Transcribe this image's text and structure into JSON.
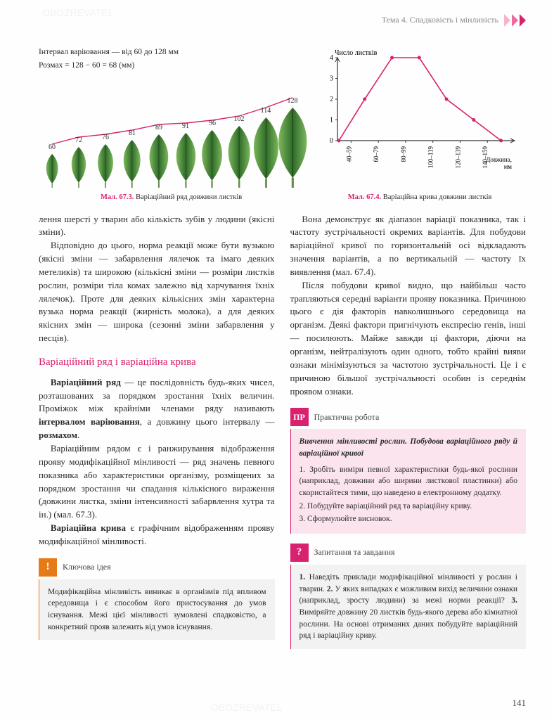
{
  "header": {
    "theme": "Тема 4. Спадковість і мінливість"
  },
  "fig_left": {
    "interval_line": "Інтервал варіювання — від 60 до 128 мм",
    "range_line": "Розмах = 128 − 60 = 68 (мм)",
    "leaves": {
      "values": [
        60,
        72,
        76,
        81,
        89,
        91,
        96,
        102,
        114,
        128
      ],
      "heights": [
        48,
        58,
        62,
        68,
        76,
        78,
        82,
        88,
        100,
        114
      ],
      "fill_light": "#7cb85a",
      "fill_dark": "#2f6a2a",
      "stem": "#6a8a4a",
      "trend_color": "#d8216f"
    },
    "caption_bold": "Мал. 67.3.",
    "caption": "Варіаційний ряд довжини листків"
  },
  "fig_right": {
    "y_label": "Число листків",
    "x_label": "Довжина, мм",
    "x_ticks": [
      "40–59",
      "60–79",
      "80–99",
      "100–119",
      "120–139",
      "140–159"
    ],
    "y_ticks": [
      0,
      1,
      2,
      3,
      4
    ],
    "points": [
      0,
      2,
      4,
      4,
      2,
      1,
      0
    ],
    "line_color": "#d8216f",
    "axis_color": "#333333",
    "caption_bold": "Мал. 67.4.",
    "caption": "Варіаційна крива довжини листків"
  },
  "body": {
    "p1": "лення шерсті у тварин або кількість зубів у людини (якісні зміни).",
    "p2": "Відповідно до цього, норма реакції може бути вузькою (якісні зміни — забарвлення лялечок та імаго деяких метеликів) та широкою (кількісні зміни — розміри листків рослин, розміри тіла комах залежно від харчування їхніх лялечок). Проте для деяких кількісних змін характерна вузька норма реакції (жирність молока), а для деяких якісних змін — широка (сезонні зміни забарвлення у песців).",
    "h3": "Варіаційний ряд і варіаційна крива",
    "p3a": "Варіаційний ряд",
    "p3b": " — це послідовність будь-яких чисел, розташованих за порядком зростання їхніх величин. Проміжок між крайніми членами ряду називають ",
    "p3c": "інтервалом варіювання",
    "p3d": ", а довжину цього інтервалу — ",
    "p3e": "розмахом",
    "p3f": ".",
    "p4": "Варіаційним рядом є і ранжирування відображення прояву модифікаційної мінливості — ряд значень певного показника або характеристики організму, розміщених за порядком зростання чи спадання кількісного вираження (довжини листка, зміни інтенсивності забарвлення хутра та ін.) (мал. 67.3).",
    "p5a": "Варіаційна крива",
    "p5b": " є графічним відображенням прояву модифікаційної мінливості.",
    "p6": "Вона демонструє як діапазон варіації показника, так і частоту зустрічальності окремих варіантів. Для побудови варіаційної кривої по горизонтальній осі відкладають значення варіантів, а по вертикальній — частоту їх виявлення (мал. 67.4).",
    "p7": "Після побудови кривої видно, що найбільш часто трапляються середні варіанти прояву показника. Причиною цього є дія факторів навколишнього середовища на організм. Деякі фактори пригнічують експресію генів, інші — посилюють. Майже завжди ці фактори, діючи на організм, нейтралізують один одного, тобто крайні вияви ознаки мінімізуються за частотою зустрічальності. Це і є причиною більшої зустрічальності особин із середнім проявом ознаки."
  },
  "box_key": {
    "title": "Ключова ідея",
    "text": "Модифікаційна мінливість виникає в організмів під впливом середовища і є способом його пристосування до умов існування. Межі цієї мінливості зумовлені спадковістю, а конкретний прояв залежить від умов існування."
  },
  "box_pr": {
    "badge": "ПР",
    "title": "Практична робота",
    "heading": "Вивчення мінливості рослин. Побудова варіаційного ряду й варіаційної кривої",
    "items": [
      "1. Зробіть виміри певної характеристики будь-якої рослини (наприклад, довжини або ширини листкової пластинки) або скористайтеся тими, що наведено в електронному додатку.",
      "2. Побудуйте варіаційний ряд та варіаційну криву.",
      "3. Сформулюйте висновок."
    ]
  },
  "box_q": {
    "badge": "?",
    "title": "Запитання та завдання",
    "text_parts": [
      "1.",
      " Наведіть приклади модифікаційної мінливості у рослин і тварин. ",
      "2.",
      " У яких випадках є можливим вихід величини ознаки (наприклад, зросту людини) за межі норми реакції? ",
      "3.",
      " Виміряйте довжину 20 листків будь-якого дерева або кімнатної рослини. На основі отриманих даних побудуйте варіаційний ряд і варіаційну криву."
    ]
  },
  "page_number": "141",
  "watermark": "OBOZREVATEL"
}
